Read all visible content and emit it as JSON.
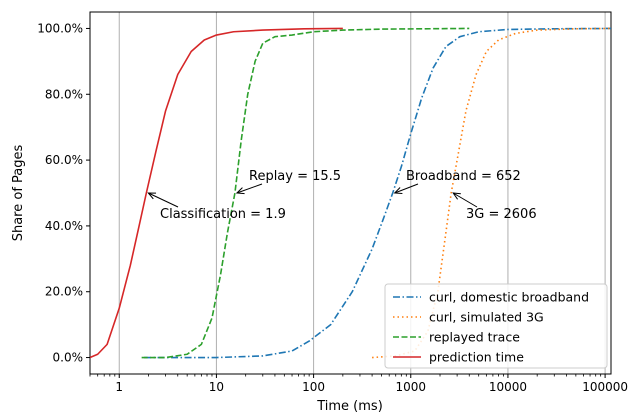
{
  "chart_data": {
    "type": "line",
    "title": "",
    "xlabel": "Time (ms)",
    "ylabel": "Share of Pages",
    "x_scale": "log",
    "xlim": [
      0.5,
      115000
    ],
    "ylim": [
      -0.05,
      1.05
    ],
    "x_ticks": [
      {
        "value": 1,
        "label": "1"
      },
      {
        "value": 10,
        "label": "10"
      },
      {
        "value": 100,
        "label": "100"
      },
      {
        "value": 1000,
        "label": "1000"
      },
      {
        "value": 10000,
        "label": "10000"
      },
      {
        "value": 100000,
        "label": "100000"
      }
    ],
    "y_ticks": [
      {
        "value": 0.0,
        "label": "0.0%"
      },
      {
        "value": 0.2,
        "label": "20.0%"
      },
      {
        "value": 0.4,
        "label": "40.0%"
      },
      {
        "value": 0.6,
        "label": "60.0%"
      },
      {
        "value": 0.8,
        "label": "80.0%"
      },
      {
        "value": 1.0,
        "label": "100.0%"
      }
    ],
    "grid": "vertical",
    "legend_position": "bottom-right",
    "series": [
      {
        "name": "curl, domestic broadband",
        "color": "#1f77b4",
        "dash": "dashdot",
        "points": [
          [
            1.8,
            0.0
          ],
          [
            10,
            0.0
          ],
          [
            30,
            0.005
          ],
          [
            60,
            0.02
          ],
          [
            90,
            0.05
          ],
          [
            150,
            0.1
          ],
          [
            250,
            0.2
          ],
          [
            400,
            0.33
          ],
          [
            520,
            0.42
          ],
          [
            652,
            0.5
          ],
          [
            800,
            0.58
          ],
          [
            1000,
            0.68
          ],
          [
            1300,
            0.79
          ],
          [
            1700,
            0.88
          ],
          [
            2300,
            0.945
          ],
          [
            3200,
            0.975
          ],
          [
            5000,
            0.99
          ],
          [
            10000,
            0.997
          ],
          [
            30000,
            0.999
          ],
          [
            115000,
            1.0
          ]
        ]
      },
      {
        "name": "curl, simulated 3G",
        "color": "#ff7f0e",
        "dash": "dotted",
        "points": [
          [
            400,
            0.0
          ],
          [
            700,
            0.005
          ],
          [
            1100,
            0.02
          ],
          [
            1500,
            0.08
          ],
          [
            1900,
            0.2
          ],
          [
            2300,
            0.38
          ],
          [
            2606,
            0.5
          ],
          [
            3000,
            0.6
          ],
          [
            3700,
            0.75
          ],
          [
            4700,
            0.86
          ],
          [
            6000,
            0.93
          ],
          [
            8000,
            0.965
          ],
          [
            12000,
            0.985
          ],
          [
            20000,
            0.995
          ],
          [
            50000,
            0.999
          ],
          [
            115000,
            1.0
          ]
        ]
      },
      {
        "name": "replayed trace",
        "color": "#2ca02c",
        "dash": "dashed",
        "points": [
          [
            1.7,
            0.0
          ],
          [
            3,
            0.0
          ],
          [
            5,
            0.01
          ],
          [
            7,
            0.04
          ],
          [
            9,
            0.12
          ],
          [
            11,
            0.25
          ],
          [
            13,
            0.38
          ],
          [
            15.5,
            0.5
          ],
          [
            18,
            0.66
          ],
          [
            21,
            0.8
          ],
          [
            25,
            0.9
          ],
          [
            30,
            0.955
          ],
          [
            40,
            0.975
          ],
          [
            60,
            0.98
          ],
          [
            100,
            0.99
          ],
          [
            200,
            0.995
          ],
          [
            500,
            0.998
          ],
          [
            4000,
            1.0
          ]
        ]
      },
      {
        "name": "prediction time",
        "color": "#d62728",
        "dash": "solid",
        "points": [
          [
            0.5,
            0.0
          ],
          [
            0.6,
            0.01
          ],
          [
            0.75,
            0.04
          ],
          [
            1.0,
            0.15
          ],
          [
            1.3,
            0.28
          ],
          [
            1.6,
            0.4
          ],
          [
            1.9,
            0.5
          ],
          [
            2.4,
            0.63
          ],
          [
            3,
            0.75
          ],
          [
            4,
            0.86
          ],
          [
            5.5,
            0.93
          ],
          [
            7.5,
            0.965
          ],
          [
            10,
            0.98
          ],
          [
            15,
            0.99
          ],
          [
            30,
            0.995
          ],
          [
            80,
            0.999
          ],
          [
            200,
            1.0
          ]
        ]
      }
    ],
    "annotations": [
      {
        "text": "Classification = 1.9",
        "point": [
          1.9,
          0.5
        ]
      },
      {
        "text": "Replay = 15.5",
        "point": [
          15.5,
          0.5
        ]
      },
      {
        "text": "Broadband = 652",
        "point": [
          652,
          0.5
        ]
      },
      {
        "text": "3G = 2606",
        "point": [
          2606,
          0.5
        ]
      }
    ]
  }
}
